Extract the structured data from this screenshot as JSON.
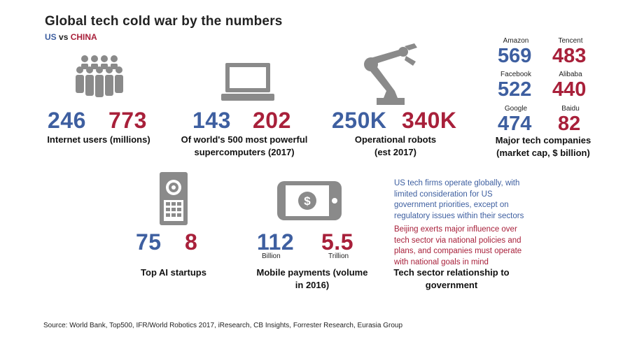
{
  "header": {
    "title": "Global tech cold war by the numbers",
    "us_label": "US",
    "vs_label": "vs",
    "china_label": "CHINA"
  },
  "colors": {
    "us": "#3e5fa0",
    "china": "#a8203a",
    "icon": "#8a8a8a"
  },
  "chart_data": {
    "type": "table",
    "columns": [
      "US",
      "CHINA"
    ],
    "rows": [
      {
        "metric": "Internet users (millions)",
        "us": "246",
        "china": "773",
        "icon": "people-group-icon"
      },
      {
        "metric": "Of world's 500 most powerful supercomputers (2017)",
        "us": "143",
        "china": "202",
        "icon": "computer-icon"
      },
      {
        "metric": "Operational robots (est 2017)",
        "us": "250K",
        "china": "340K",
        "icon": "robot-arm-icon"
      },
      {
        "metric": "Top AI startups",
        "us": "75",
        "china": "8",
        "icon": "ai-device-icon"
      },
      {
        "metric": "Mobile payments (volume in 2016)",
        "us": "112",
        "us_unit": "Billion",
        "china": "5.5",
        "china_unit": "Trillion",
        "icon": "mobile-payment-icon"
      }
    ],
    "companies": {
      "label": "Major tech companies (market cap, $ billion)",
      "pairs": [
        {
          "us_name": "Amazon",
          "us_value": "569",
          "cn_name": "Tencent",
          "cn_value": "483"
        },
        {
          "us_name": "Facebook",
          "us_value": "522",
          "cn_name": "Alibaba",
          "cn_value": "440"
        },
        {
          "us_name": "Google",
          "us_value": "474",
          "cn_name": "Baidu",
          "cn_value": "82"
        }
      ]
    },
    "relationship": {
      "us_text": "US tech firms operate globally, with limited consideration for US government priorities, except on regulatory issues within their sectors",
      "cn_text": "Beijing exerts major influence over tech sector via national policies and plans, and companies must operate with national goals in mind",
      "label": "Tech sector relationship to government"
    }
  },
  "source": "Source: World Bank, Top500, IFR/World Robotics 2017, iResearch, CB Insights, Forrester Research, Eurasia Group"
}
